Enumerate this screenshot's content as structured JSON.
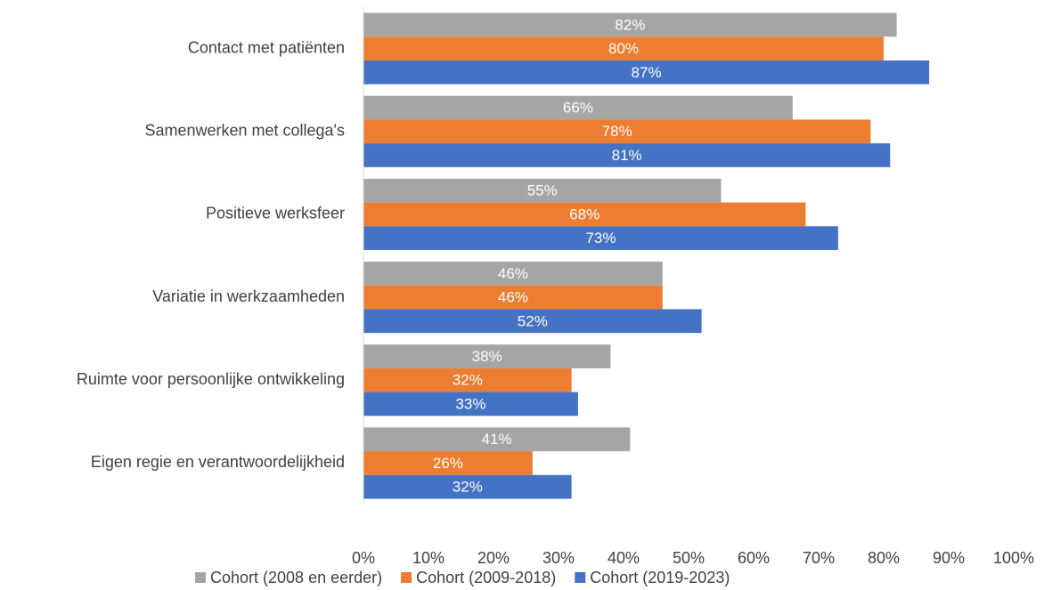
{
  "chart_data": {
    "type": "bar",
    "orientation": "horizontal",
    "categories": [
      "Contact met patiënten",
      "Samenwerken met collega's",
      "Positieve werksfeer",
      "Variatie in werkzaamheden",
      "Ruimte voor persoonlijke ontwikkeling",
      "Eigen regie en verantwoordelijkheid"
    ],
    "series": [
      {
        "name": "Cohort (2008 en eerder)",
        "color": "#a5a5a5",
        "values": [
          82,
          66,
          55,
          46,
          38,
          41
        ],
        "value_labels": [
          "82%",
          "66%",
          "55%",
          "46%",
          "38%",
          "41%"
        ]
      },
      {
        "name": "Cohort (2009-2018)",
        "color": "#ed7d31",
        "values": [
          80,
          78,
          68,
          46,
          32,
          26
        ],
        "value_labels": [
          "80%",
          "78%",
          "68%",
          "46%",
          "32%",
          "26%"
        ]
      },
      {
        "name": "Cohort (2019-2023)",
        "color": "#4472c4",
        "values": [
          87,
          81,
          73,
          52,
          33,
          32
        ],
        "value_labels": [
          "87%",
          "81%",
          "73%",
          "52%",
          "33%",
          "32%"
        ]
      }
    ],
    "xlim": [
      0,
      100
    ],
    "xticks": [
      {
        "value": 0,
        "label": "0%"
      },
      {
        "value": 10,
        "label": "10%"
      },
      {
        "value": 20,
        "label": "20%"
      },
      {
        "value": 30,
        "label": "30%"
      },
      {
        "value": 40,
        "label": "40%"
      },
      {
        "value": 50,
        "label": "50%"
      },
      {
        "value": 60,
        "label": "60%"
      },
      {
        "value": 70,
        "label": "70%"
      },
      {
        "value": 80,
        "label": "80%"
      },
      {
        "value": 90,
        "label": "90%"
      },
      {
        "value": 100,
        "label": "100%"
      }
    ],
    "grid": false,
    "legend": "bottom"
  }
}
